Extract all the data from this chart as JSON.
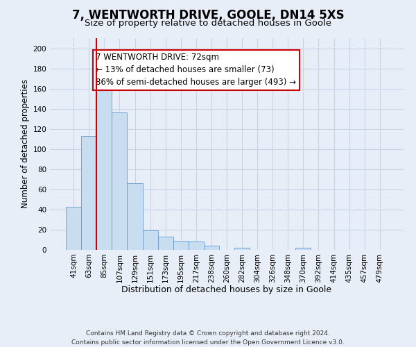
{
  "title": "7, WENTWORTH DRIVE, GOOLE, DN14 5XS",
  "subtitle": "Size of property relative to detached houses in Goole",
  "xlabel": "Distribution of detached houses by size in Goole",
  "ylabel": "Number of detached properties",
  "bar_labels": [
    "41sqm",
    "63sqm",
    "85sqm",
    "107sqm",
    "129sqm",
    "151sqm",
    "173sqm",
    "195sqm",
    "217sqm",
    "238sqm",
    "260sqm",
    "282sqm",
    "304sqm",
    "326sqm",
    "348sqm",
    "370sqm",
    "392sqm",
    "414sqm",
    "435sqm",
    "457sqm",
    "479sqm"
  ],
  "bar_values": [
    43,
    113,
    160,
    136,
    66,
    19,
    13,
    9,
    8,
    4,
    0,
    2,
    0,
    0,
    0,
    2,
    0,
    0,
    0,
    0,
    0
  ],
  "bar_color": "#c9ddf0",
  "bar_edge_color": "#6699cc",
  "vline_color": "#cc0000",
  "annotation_text": "7 WENTWORTH DRIVE: 72sqm\n← 13% of detached houses are smaller (73)\n86% of semi-detached houses are larger (493) →",
  "annotation_box_edge_color": "#cc0000",
  "annotation_box_face_color": "#ffffff",
  "ylim": [
    0,
    210
  ],
  "yticks": [
    0,
    20,
    40,
    60,
    80,
    100,
    120,
    140,
    160,
    180,
    200
  ],
  "grid_color": "#c8d4e4",
  "background_color": "#e8eef8",
  "footer_text": "Contains HM Land Registry data © Crown copyright and database right 2024.\nContains public sector information licensed under the Open Government Licence v3.0.",
  "title_fontsize": 12,
  "subtitle_fontsize": 9.5,
  "xlabel_fontsize": 9,
  "ylabel_fontsize": 8.5,
  "tick_fontsize": 7.5,
  "annotation_fontsize": 8.5,
  "footer_fontsize": 6.5
}
